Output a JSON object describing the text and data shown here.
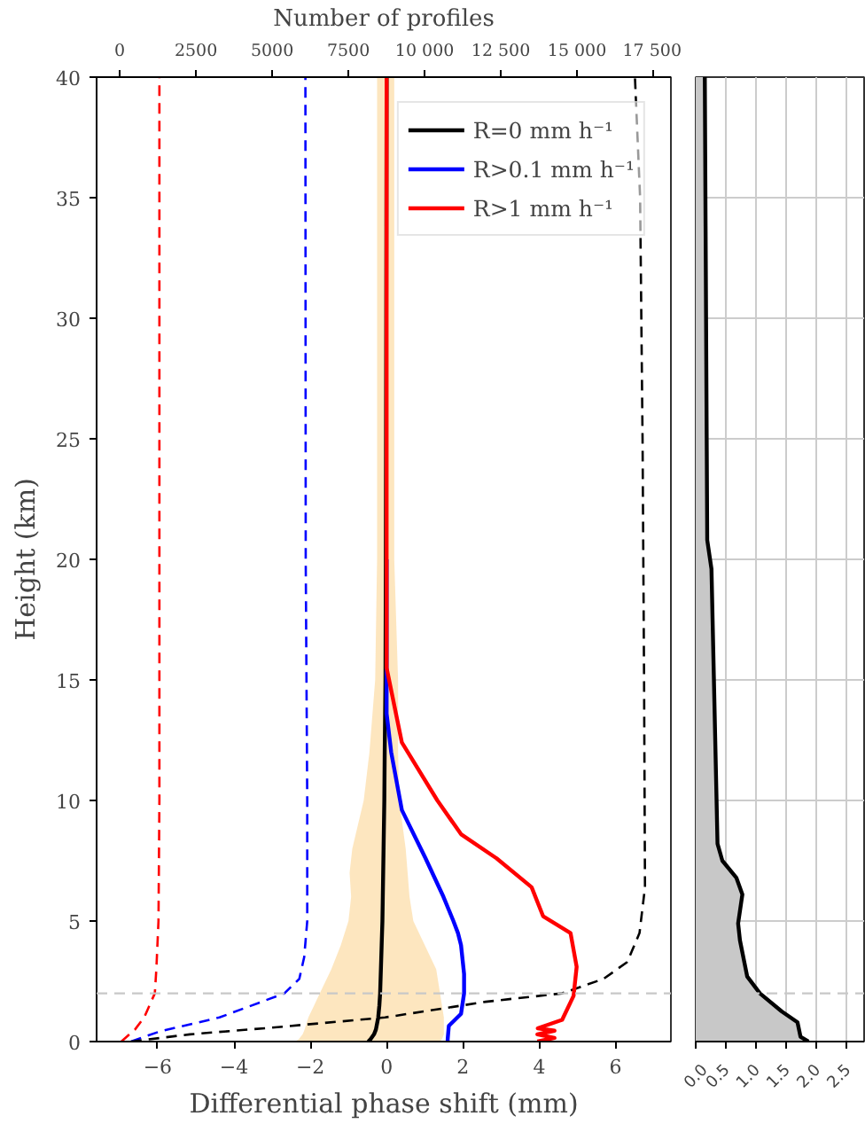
{
  "chart_data": [
    {
      "type": "line",
      "orientation": "horizontal",
      "xlabel": "Differential phase shift (mm)",
      "ylabel": "Height (km)",
      "x2label": "Number of profiles",
      "xlim": [
        -7.6,
        7.45
      ],
      "xticks": [
        {
          "value": -6,
          "label": "−6"
        },
        {
          "value": -4,
          "label": "−4"
        },
        {
          "value": -2,
          "label": "−2"
        },
        {
          "value": 0,
          "label": "0"
        },
        2,
        4,
        6
      ],
      "x2lim": [
        -760,
        18080
      ],
      "x2ticks": [
        0,
        2500,
        5000,
        7500,
        {
          "value": 10000,
          "label": "10 000"
        },
        {
          "value": 12500,
          "label": "12 500"
        },
        {
          "value": 15000,
          "label": "15 000"
        },
        {
          "value": 17500,
          "label": "17 500"
        }
      ],
      "ylim": [
        0,
        40
      ],
      "yticks": [
        0,
        5,
        10,
        15,
        20,
        25,
        30,
        35,
        40
      ],
      "legend": "top right",
      "grid": false,
      "ref_lines": [
        {
          "axis": "y",
          "value": 2,
          "color": "#c8c8c8",
          "line_style": "dashed"
        }
      ],
      "series": [
        {
          "name": "R=0 mm h⁻¹",
          "color": "#000000",
          "x": [
            0,
            0.1,
            0.3,
            0.5,
            1,
            1.5,
            2,
            3,
            4,
            5,
            6,
            7,
            8,
            10,
            12,
            15,
            20,
            30,
            40
          ],
          "values": [
            -0.48,
            -0.42,
            -0.33,
            -0.28,
            -0.22,
            -0.19,
            -0.17,
            -0.15,
            -0.13,
            -0.11,
            -0.1,
            -0.09,
            -0.08,
            -0.06,
            -0.05,
            -0.03,
            -0.02,
            -0.01,
            0
          ],
          "lower": [
            -2.4,
            -2.3,
            -2.2,
            -2.15,
            -2.05,
            -1.9,
            -1.75,
            -1.45,
            -1.2,
            -1.0,
            -0.93,
            -0.97,
            -0.9,
            -0.6,
            -0.45,
            -0.3,
            -0.25,
            -0.25,
            -0.25
          ],
          "upper": [
            1.4,
            1.45,
            1.5,
            1.5,
            1.5,
            1.45,
            1.4,
            1.3,
            1.0,
            0.7,
            0.6,
            0.55,
            0.5,
            0.33,
            0.3,
            0.3,
            0.2,
            0.2,
            0.2
          ]
        },
        {
          "name": "R>0.1 mm h⁻¹",
          "color": "#0000ff",
          "x": [
            0,
            0.1,
            0.65,
            1.15,
            2,
            2.8,
            4,
            4.5,
            5,
            6,
            7.6,
            9.6,
            12,
            13.6,
            15,
            20
          ],
          "values": [
            1.6,
            1.6,
            1.63,
            1.95,
            2.03,
            2.03,
            1.95,
            1.87,
            1.75,
            1.49,
            1.02,
            0.4,
            0.12,
            0,
            0,
            0
          ]
        },
        {
          "name": "R>1 mm h⁻¹",
          "color": "#ff0000",
          "x": [
            0,
            0.15,
            0.3,
            0.45,
            0.55,
            0.9,
            1.9,
            3.1,
            4.5,
            5.2,
            6.4,
            7.6,
            8.6,
            10,
            12.4,
            15.5,
            20,
            30,
            40
          ],
          "values": [
            3.95,
            4.4,
            3.95,
            4.4,
            3.96,
            4.6,
            4.9,
            4.98,
            4.82,
            4.1,
            3.8,
            2.88,
            1.95,
            1.33,
            0.4,
            0,
            0,
            0,
            0
          ]
        },
        {
          "color": "#ff0000",
          "axis": "x2",
          "line_style": "dashed",
          "x": [
            0,
            0.5,
            1,
            2,
            3,
            5,
            10,
            20,
            40
          ],
          "values": [
            50,
            500,
            800,
            1150,
            1200,
            1270,
            1300,
            1300,
            1300
          ]
        },
        {
          "color": "#0000ff",
          "axis": "x2",
          "line_style": "dashed",
          "x": [
            0,
            0.2,
            0.43,
            1,
            2,
            2.6,
            3.5,
            5,
            10,
            20,
            40
          ],
          "values": [
            370,
            800,
            1340,
            3270,
            5400,
            5890,
            6050,
            6150,
            6150,
            6100,
            6090
          ]
        },
        {
          "color": "#000000",
          "axis": "x2",
          "line_style": "dashed",
          "x": [
            0,
            0.3,
            0.56,
            1,
            1.65,
            2,
            2.6,
            3.3,
            4.5,
            6.4,
            15,
            25,
            35,
            40
          ],
          "values": [
            370,
            2300,
            4830,
            8700,
            12000,
            14510,
            15870,
            16650,
            17050,
            17230,
            17200,
            17150,
            17070,
            16900
          ]
        }
      ]
    },
    {
      "type": "area",
      "orientation": "horizontal",
      "xlim": [
        0,
        2.78
      ],
      "xticks": [
        {
          "value": 0,
          "label": "0.0"
        },
        0.5,
        {
          "value": 1,
          "label": "1.0"
        },
        1.5,
        {
          "value": 2,
          "label": "2.0"
        },
        2.5
      ],
      "ylim": [
        0,
        40
      ],
      "yticks": [
        0,
        5,
        10,
        15,
        20,
        25,
        30,
        35,
        40
      ],
      "tick_labels": "x",
      "grid": true,
      "ref_lines": [
        {
          "axis": "y",
          "value": 2,
          "color": "#c8c8c8",
          "line_style": "dashed"
        }
      ],
      "series": [
        {
          "type": "area",
          "color": "#c8c8c8",
          "x": [
            0,
            0.2,
            0.8,
            1.25,
            2,
            2.7,
            4.2,
            4.9,
            6.1,
            6.8,
            7.5,
            8.2,
            19.6,
            20.8,
            40
          ],
          "values": [
            1.86,
            1.73,
            1.68,
            1.42,
            1.06,
            0.85,
            0.73,
            0.7,
            0.77,
            0.67,
            0.44,
            0.36,
            0.26,
            0.19,
            0.15
          ]
        }
      ]
    }
  ]
}
